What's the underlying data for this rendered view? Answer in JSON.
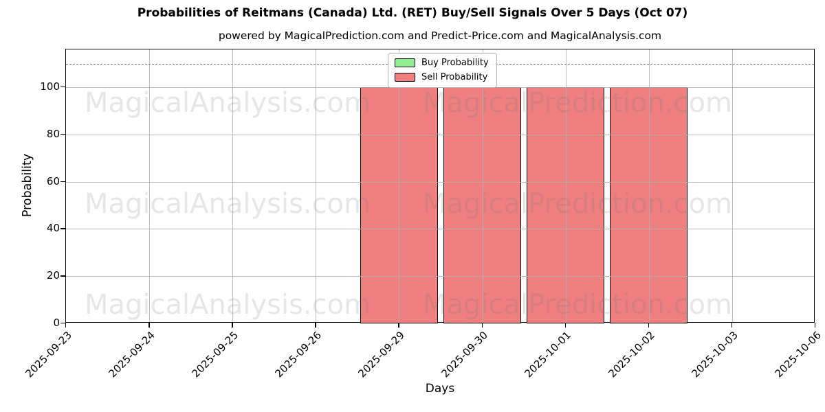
{
  "title": "Probabilities of Reitmans (Canada) Ltd. (RET) Buy/Sell Signals Over 5 Days (Oct 07)",
  "subtitle": "powered by MagicalPrediction.com and Predict-Price.com and MagicalAnalysis.com",
  "watermarks": {
    "left": "MagicalAnalysis.com",
    "right": "MagicalPrediction.com"
  },
  "legend": [
    {
      "label": "Buy Probability",
      "color": "#90EE90"
    },
    {
      "label": "Sell Probability",
      "color": "#F08080"
    }
  ],
  "chart_data": {
    "type": "bar",
    "categories": [
      "2025-09-23",
      "2025-09-24",
      "2025-09-25",
      "2025-09-26",
      "2025-09-29",
      "2025-09-30",
      "2025-10-01",
      "2025-10-02",
      "2025-10-03",
      "2025-10-06"
    ],
    "series": [
      {
        "name": "Buy Probability",
        "color": "#90EE90",
        "values": [
          0,
          0,
          0,
          0,
          0,
          0,
          0,
          0,
          0,
          0
        ]
      },
      {
        "name": "Sell Probability",
        "color": "#F08080",
        "values": [
          0,
          0,
          0,
          0,
          100,
          100,
          100,
          100,
          0,
          0
        ]
      }
    ],
    "title": "Probabilities of Reitmans (Canada) Ltd. (RET) Buy/Sell Signals Over 5 Days (Oct 07)",
    "xlabel": "Days",
    "ylabel": "Probability",
    "ylim": [
      0,
      116
    ],
    "yticks": [
      0,
      20,
      40,
      60,
      80,
      100
    ],
    "threshold_line": {
      "y": 110,
      "style": "dashed",
      "color": "#7a7a7a"
    },
    "grid": true,
    "legend_position": "upper center",
    "bar_edge_color": "#000000"
  }
}
